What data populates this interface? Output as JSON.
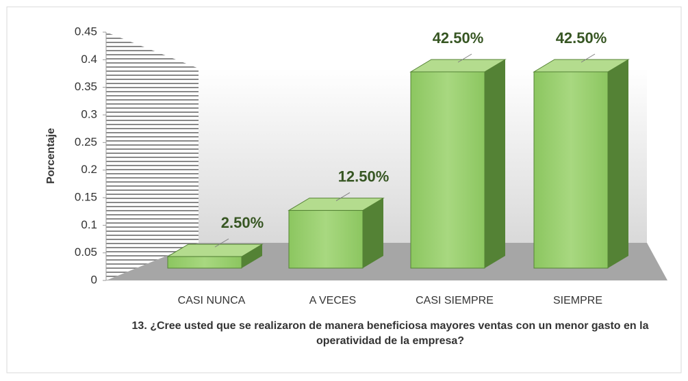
{
  "chart_data": {
    "type": "bar3d",
    "categories": [
      "CASI NUNCA",
      "A VECES",
      "CASI SIEMPRE",
      "SIEMPRE"
    ],
    "values": [
      0.025,
      0.125,
      0.425,
      0.425
    ],
    "value_labels": [
      "2.50%",
      "12.50%",
      "42.50%",
      "42.50%"
    ],
    "color": "#92d050",
    "ylabel": "Porcentaje",
    "xlabel": "13. ¿Cree usted que se realizaron de manera beneficiosa mayores ventas con un menor gasto en la operatividad de la empresa?",
    "ylim": [
      0,
      0.45
    ],
    "yticks": [
      0,
      0.05,
      0.1,
      0.15,
      0.2,
      0.25,
      0.3,
      0.35,
      0.4,
      0.45
    ]
  }
}
